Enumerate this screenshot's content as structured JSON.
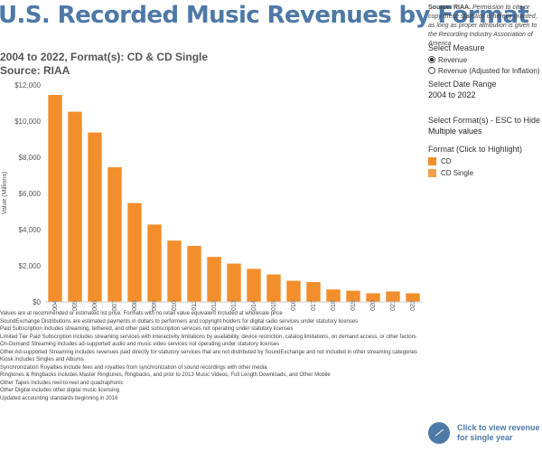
{
  "header": {
    "title": "U.S. Recorded Music Revenues by Format",
    "subtitle_line1": "2004 to 2022, Format(s): CD & CD Single",
    "subtitle_line2": "Source: RIAA"
  },
  "source_note": {
    "bold": "Source: RIAA.",
    "text": " Permission to cite or copy these statistics is hereby granted, as long as proper attribution is given to the Recording Industry Association of America"
  },
  "controls": {
    "measure": {
      "title": "Select Measure",
      "options": [
        "Revenue",
        "Revenue (Adjusted for Inflation)"
      ],
      "selected_index": 0
    },
    "date_range": {
      "title": "Select Date Range",
      "value": "2004 to 2022"
    },
    "formats": {
      "title": "Select Format(s) - ESC to Hide",
      "value": "Multiple values"
    },
    "legend": {
      "title": "Format (Click to Highlight)",
      "items": [
        {
          "label": "CD",
          "color": "#f28e2b"
        },
        {
          "label": "CD Single",
          "color": "#f5a04a"
        }
      ]
    }
  },
  "chart_data": {
    "type": "bar",
    "categories": [
      "2004",
      "2005",
      "2006",
      "2007",
      "2008",
      "2009",
      "2010",
      "2011",
      "2012",
      "2013",
      "2014",
      "2015",
      "2016",
      "2017",
      "2018",
      "2019",
      "2020",
      "2021",
      "2022"
    ],
    "series": [
      {
        "name": "CD",
        "values": [
          11450,
          10520,
          9370,
          7450,
          5470,
          4280,
          3390,
          3100,
          2490,
          2120,
          1830,
          1520,
          1170,
          1100,
          690,
          620,
          480,
          580,
          480
        ],
        "color": "#f28e2b"
      }
    ],
    "ylabel": "Value (Millions)",
    "ylim": [
      0,
      12000
    ],
    "yticks": [
      0,
      2000,
      4000,
      6000,
      8000,
      10000,
      12000
    ],
    "ytick_labels": [
      "$0",
      "$2,000",
      "$4,000",
      "$6,000",
      "$8,000",
      "$10,000",
      "$12,000"
    ],
    "grid": false
  },
  "notes": [
    "Values are at recommended or estimated list price. Formats with no retail value equivalent included at wholesale price",
    "SoundExchange Distributions are estimated payments in dollars to performers and copyright holders for digital radio services under statutory licenses",
    "Paid Subscription includes streaming, tethered, and other paid subscription services not operating under statutory licenses",
    "Limited Tier Paid Subscription includes streaming services with interactivity limitations by availability, device restriction, catalog limitations, on demand access, or other factors",
    "On-Demand Streaming includes ad-supported audio and music video services not operating under statutory licenses",
    "Other Ad-supported Streaming includes revenues paid directly for statutory services that are not distributed by SoundExchange and not included in other streaming categories",
    "Kiosk includes Singles and Albums",
    "Synchronization Royalties include fees and royalties from synchronization of sound recordings with other media",
    "Ringtones & Ringbacks includes Master Ringtunes, Ringbacks, and prior to 2013 Music Videos, Full Length Downloads, and Other Mobile",
    "Other Tapes includes reel-to-reel and quadraphonic",
    "Other Digital includes other digital music licensing",
    "Updated accounting standards beginning in 2016"
  ],
  "footer": {
    "label": "Click to view revenue for single year"
  }
}
